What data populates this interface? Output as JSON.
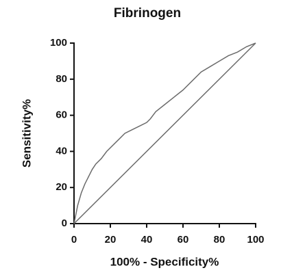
{
  "chart_data": {
    "type": "line",
    "title": "Fibrinogen",
    "x_label": "100% - Specificity%",
    "y_label": "Sensitivity%",
    "series": [
      {
        "color": "#6b6b6b",
        "x": [
          0,
          1,
          2,
          4,
          6,
          8,
          10,
          12,
          15,
          18,
          22,
          25,
          28,
          32,
          36,
          40,
          42,
          45,
          50,
          55,
          60,
          65,
          70,
          75,
          80,
          85,
          90,
          95,
          100
        ],
        "values": [
          0,
          5,
          10,
          17,
          22,
          26,
          30,
          33,
          36,
          40,
          44,
          47,
          50,
          52,
          54,
          56,
          58,
          62,
          66,
          70,
          74,
          79,
          84,
          87,
          90,
          93,
          95,
          98,
          100
        ]
      },
      {
        "color": "#6b6b6b",
        "x": [
          0,
          100
        ],
        "values": [
          0,
          100
        ]
      }
    ],
    "xlim": [
      0,
      100
    ],
    "ylim": [
      0,
      100
    ],
    "xticks": [
      0,
      20,
      40,
      60,
      80,
      100
    ],
    "yticks": [
      0,
      20,
      40,
      60,
      80,
      100
    ]
  }
}
